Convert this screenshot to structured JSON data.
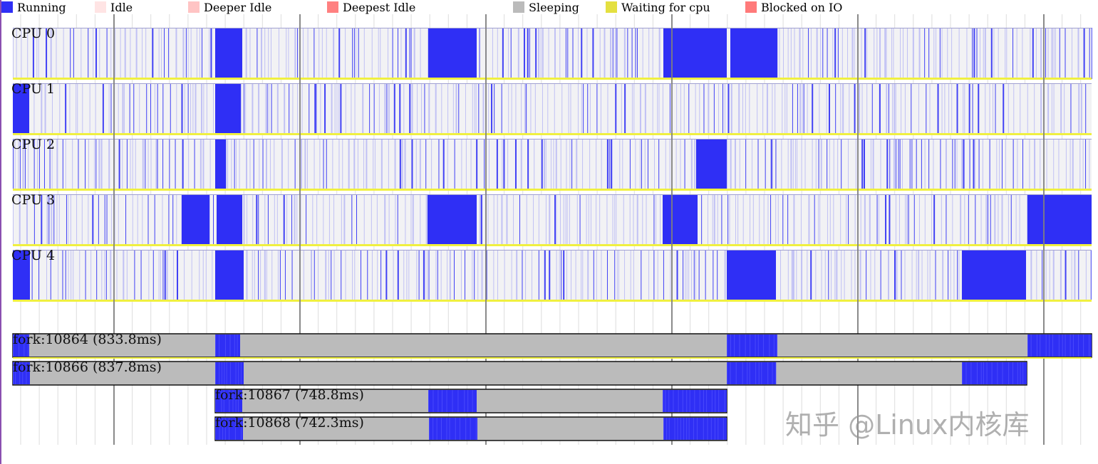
{
  "legend": [
    {
      "label": "Running",
      "color": "#2f2ff5"
    },
    {
      "label": "Idle",
      "color": "#ffe4e4"
    },
    {
      "label": "Deeper Idle",
      "color": "#ffc4c4"
    },
    {
      "label": "Deepest Idle",
      "color": "#ff8080"
    },
    {
      "label": "Sleeping",
      "color": "#bbbbbb"
    },
    {
      "label": "Waiting for cpu",
      "color": "#e4e040"
    },
    {
      "label": "Blocked on IO",
      "color": "#ff7a7a"
    }
  ],
  "cpus": [
    {
      "label": "CPU 0"
    },
    {
      "label": "CPU 1"
    },
    {
      "label": "CPU 2"
    },
    {
      "label": "CPU 3"
    },
    {
      "label": "CPU 4"
    }
  ],
  "processes": [
    {
      "label": "fork:10864 (833.8ms)"
    },
    {
      "label": "fork:10866 (837.8ms)"
    },
    {
      "label": "fork:10867 (748.8ms)"
    },
    {
      "label": "fork:10868 (742.3ms)"
    }
  ],
  "colors": {
    "running": "#2f2ff5",
    "sleeping": "#bbbbbb",
    "cpu_bg": "#f2f2f4",
    "waiting": "#f0f040",
    "grid_major": "#808080",
    "grid_minor": "#dddddd"
  },
  "watermark": "知乎 @Linux内核库"
}
